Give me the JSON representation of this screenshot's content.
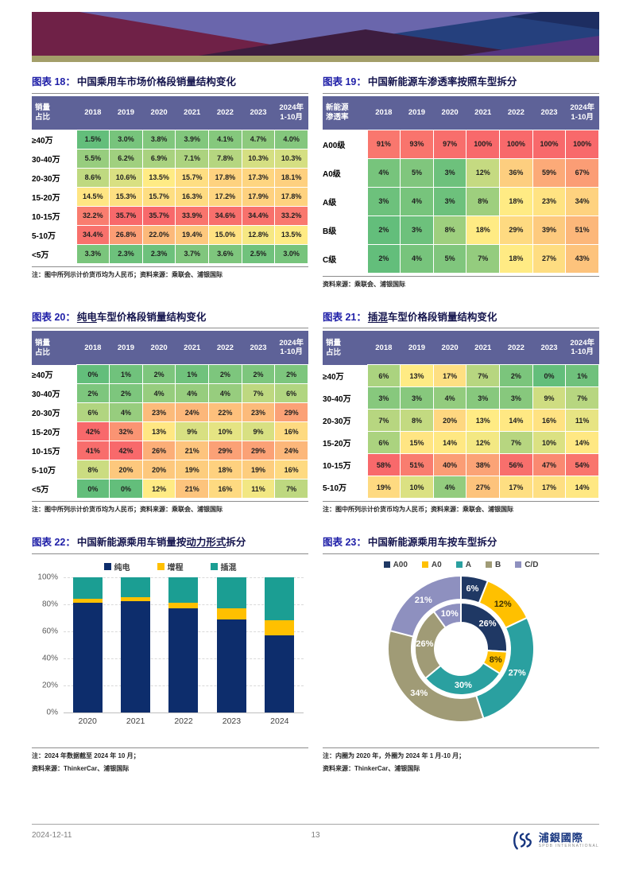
{
  "colors": {
    "accent_blue": "#2020a8",
    "title_dark": "#14144d",
    "table_header_bg": "#5e6298",
    "heat_low": "#63be7b",
    "heat_mid": "#ffeb84",
    "heat_high": "#f8696b",
    "banner_maroon": "#6f2147",
    "banner_blue": "#25407d",
    "banner_purple": "#6a66ac",
    "banner_plum": "#3d1d3f",
    "banner_violet": "#55357f",
    "banner_navy": "#1d2d61",
    "banner_olive": "#a39e69"
  },
  "figures": {
    "fig18": {
      "label": "图表 18：",
      "title_pre": "中国乘用车市场价格段销量结构变化",
      "title_u": "",
      "title_post": "",
      "table": {
        "corner": "销量\n占比",
        "columns": [
          "2018",
          "2019",
          "2020",
          "2021",
          "2022",
          "2023",
          "2024年\n1-10月"
        ],
        "rows": [
          {
            "label": "≥40万",
            "values": [
              "1.5%",
              "3.0%",
              "3.8%",
              "3.9%",
              "4.1%",
              "4.7%",
              "4.0%"
            ]
          },
          {
            "label": "30-40万",
            "values": [
              "5.5%",
              "6.2%",
              "6.9%",
              "7.1%",
              "7.8%",
              "10.3%",
              "10.3%"
            ]
          },
          {
            "label": "20-30万",
            "values": [
              "8.6%",
              "10.6%",
              "13.5%",
              "15.7%",
              "17.8%",
              "17.3%",
              "18.1%"
            ]
          },
          {
            "label": "15-20万",
            "values": [
              "14.5%",
              "15.3%",
              "15.7%",
              "16.3%",
              "17.2%",
              "17.9%",
              "17.8%"
            ]
          },
          {
            "label": "10-15万",
            "values": [
              "32.2%",
              "35.7%",
              "35.7%",
              "33.9%",
              "34.6%",
              "34.4%",
              "33.2%"
            ]
          },
          {
            "label": "5-10万",
            "values": [
              "34.4%",
              "26.8%",
              "22.0%",
              "19.4%",
              "15.0%",
              "12.8%",
              "13.5%"
            ]
          },
          {
            "label": "<5万",
            "values": [
              "3.3%",
              "2.3%",
              "2.3%",
              "3.7%",
              "3.6%",
              "2.5%",
              "3.0%"
            ]
          }
        ]
      },
      "note": "注：图中所列示计价货币均为人民币；资料来源：乘联会、浦银国际"
    },
    "fig19": {
      "label": "图表 19：",
      "title_pre": "中国新能源车渗透率按照车型拆分",
      "title_u": "",
      "title_post": "",
      "table": {
        "corner": "新能源\n渗透率",
        "columns": [
          "2018",
          "2019",
          "2020",
          "2021",
          "2022",
          "2023",
          "2024年\n1-10月"
        ],
        "rows": [
          {
            "label": "A00级",
            "values": [
              "91%",
              "93%",
              "97%",
              "100%",
              "100%",
              "100%",
              "100%"
            ]
          },
          {
            "label": "A0级",
            "values": [
              "4%",
              "5%",
              "3%",
              "12%",
              "36%",
              "59%",
              "67%"
            ]
          },
          {
            "label": "A级",
            "values": [
              "3%",
              "4%",
              "3%",
              "8%",
              "18%",
              "23%",
              "34%"
            ]
          },
          {
            "label": "B级",
            "values": [
              "2%",
              "3%",
              "8%",
              "18%",
              "29%",
              "39%",
              "51%"
            ]
          },
          {
            "label": "C级",
            "values": [
              "2%",
              "4%",
              "5%",
              "7%",
              "18%",
              "27%",
              "43%"
            ]
          }
        ]
      },
      "note": "资料来源：乘联会、浦银国际"
    },
    "fig20": {
      "label": "图表 20：",
      "title_pre": "",
      "title_u": "纯电",
      "title_post": "车型价格段销量结构变化",
      "table": {
        "corner": "销量\n占比",
        "columns": [
          "2018",
          "2019",
          "2020",
          "2021",
          "2022",
          "2023",
          "2024年\n1-10月"
        ],
        "rows": [
          {
            "label": "≥40万",
            "values": [
              "0%",
              "1%",
              "2%",
              "1%",
              "2%",
              "2%",
              "2%"
            ]
          },
          {
            "label": "30-40万",
            "values": [
              "2%",
              "2%",
              "4%",
              "4%",
              "4%",
              "7%",
              "6%"
            ]
          },
          {
            "label": "20-30万",
            "values": [
              "6%",
              "4%",
              "23%",
              "24%",
              "22%",
              "23%",
              "29%"
            ]
          },
          {
            "label": "15-20万",
            "values": [
              "42%",
              "32%",
              "13%",
              "9%",
              "10%",
              "9%",
              "16%"
            ]
          },
          {
            "label": "10-15万",
            "values": [
              "41%",
              "42%",
              "26%",
              "21%",
              "29%",
              "29%",
              "24%"
            ]
          },
          {
            "label": "5-10万",
            "values": [
              "8%",
              "20%",
              "20%",
              "19%",
              "18%",
              "19%",
              "16%"
            ]
          },
          {
            "label": "<5万",
            "values": [
              "0%",
              "0%",
              "12%",
              "21%",
              "16%",
              "11%",
              "7%"
            ]
          }
        ]
      },
      "note": "注：图中所列示计价货币均为人民币；资料来源：乘联会、浦银国际"
    },
    "fig21": {
      "label": "图表 21：",
      "title_pre": "",
      "title_u": "插混",
      "title_post": "车型价格段销量结构变化",
      "table": {
        "corner": "销量\n占比",
        "columns": [
          "2018",
          "2019",
          "2020",
          "2021",
          "2022",
          "2023",
          "2024年\n1-10月"
        ],
        "rows": [
          {
            "label": "≥40万",
            "values": [
              "6%",
              "13%",
              "17%",
              "7%",
              "2%",
              "0%",
              "1%"
            ]
          },
          {
            "label": "30-40万",
            "values": [
              "3%",
              "3%",
              "4%",
              "3%",
              "3%",
              "9%",
              "7%"
            ]
          },
          {
            "label": "20-30万",
            "values": [
              "7%",
              "8%",
              "20%",
              "13%",
              "14%",
              "16%",
              "11%"
            ]
          },
          {
            "label": "15-20万",
            "values": [
              "6%",
              "15%",
              "14%",
              "12%",
              "7%",
              "10%",
              "14%"
            ]
          },
          {
            "label": "10-15万",
            "values": [
              "58%",
              "51%",
              "40%",
              "38%",
              "56%",
              "47%",
              "54%"
            ]
          },
          {
            "label": "5-10万",
            "values": [
              "19%",
              "10%",
              "4%",
              "27%",
              "17%",
              "17%",
              "14%"
            ]
          }
        ]
      },
      "note": "注：图中所列示计价货币均为人民币；资料来源：乘联会、浦银国际"
    },
    "fig22": {
      "label": "图表 22：",
      "title_pre": "中国新能源乘用车销量按",
      "title_u": "动力形式",
      "title_post": "拆分",
      "note1": "注：2024 年数据截至 2024 年 10 月；",
      "note2": "资料来源：ThinkerCar、浦银国际"
    },
    "fig23": {
      "label": "图表 23：",
      "title_pre": "中国新能源乘用车按车型拆分",
      "title_u": "",
      "title_post": "",
      "note1": "注：内圈为 2020 年，外圈为 2024 年 1 月-10 月；",
      "note2": "资料来源：ThinkerCar、浦银国际"
    }
  },
  "chart_data": [
    {
      "id": "fig22",
      "type": "bar",
      "stacked": true,
      "percent": true,
      "title": "中国新能源乘用车销量按动力形式拆分",
      "categories": [
        "2020",
        "2021",
        "2022",
        "2023",
        "2024"
      ],
      "series": [
        {
          "name": "纯电",
          "color": "#0d2d6c",
          "values": [
            81,
            82,
            77,
            69,
            57
          ]
        },
        {
          "name": "增程",
          "color": "#ffc000",
          "values": [
            3,
            3,
            4,
            8,
            11
          ]
        },
        {
          "name": "插混",
          "color": "#1b9e93",
          "values": [
            16,
            15,
            19,
            23,
            32
          ]
        }
      ],
      "ylim": [
        0,
        100
      ],
      "yticks": [
        0,
        20,
        40,
        60,
        80,
        100
      ],
      "ytick_suffix": "%",
      "legend_position": "top",
      "grid": "dashed-horizontal"
    },
    {
      "id": "fig23",
      "type": "pie",
      "variant": "double-donut",
      "title": "中国新能源乘用车按车型拆分",
      "legend": [
        "A00",
        "A0",
        "A",
        "B",
        "C/D"
      ],
      "colors": [
        "#1f3864",
        "#ffc000",
        "#2aa0a0",
        "#a09b76",
        "#8e90bf"
      ],
      "rings": [
        {
          "name": "内圈 2020年",
          "values": [
            26,
            8,
            30,
            26,
            10
          ]
        },
        {
          "name": "外圈 2024年1-10月",
          "values": [
            6,
            12,
            27,
            34,
            21
          ]
        }
      ],
      "label_suffix": "%",
      "dark_text_color_index": 1,
      "legend_position": "top"
    }
  ],
  "footer": {
    "date": "2024-12-11",
    "page_number": "13",
    "logo_name": "浦銀國際",
    "logo_subtitle": "SPDB INTERNATIONAL"
  }
}
